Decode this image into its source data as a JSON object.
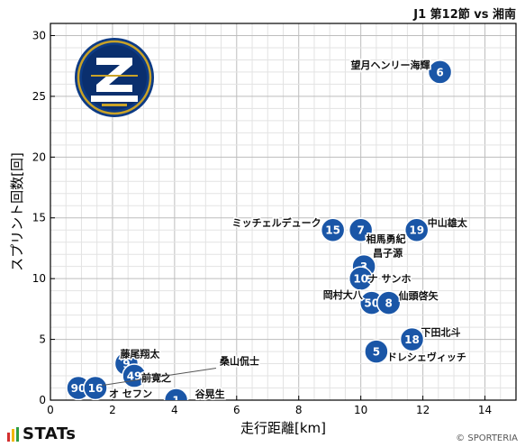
{
  "header": {
    "title": "J1 第12節 vs 湘南"
  },
  "footer": {
    "brand": "STATs",
    "copyright": "© SPORTERIA"
  },
  "colors": {
    "marker": "#1a56a7",
    "grid": "#cfcfcf",
    "axis": "#000000",
    "stats_bar_1": "#d32f2f",
    "stats_bar_2": "#f2b705",
    "stats_bar_3": "#2f9e44"
  },
  "logo": {
    "icon": "fc-machida-zelvia-crest"
  },
  "chart_data": {
    "type": "scatter",
    "xlabel": "走行距離[km]",
    "ylabel": "スプリント回数[回]",
    "xlim": [
      0,
      15
    ],
    "ylim": [
      0,
      31
    ],
    "xticks": [
      0,
      2,
      4,
      6,
      8,
      10,
      12,
      14
    ],
    "yticks": [
      0,
      5,
      10,
      15,
      20,
      25,
      30
    ],
    "grid": true,
    "points": [
      {
        "number": "6",
        "name": "望月ヘンリー海輝",
        "x": 12.55,
        "y": 27.0
      },
      {
        "number": "15",
        "name": "ミッチェルデューク",
        "x": 9.1,
        "y": 14.0
      },
      {
        "number": "7",
        "name": "相馬勇紀",
        "x": 10.0,
        "y": 14.0
      },
      {
        "number": "19",
        "name": "中山雄太",
        "x": 11.8,
        "y": 14.0
      },
      {
        "number": "3",
        "name": "昌子源",
        "x": 10.1,
        "y": 11.0
      },
      {
        "number": "10",
        "name": "ナ サンホ",
        "x": 10.0,
        "y": 10.0
      },
      {
        "number": "50",
        "name": "岡村大八",
        "x": 10.35,
        "y": 8.0
      },
      {
        "number": "8",
        "name": "仙頭啓矢",
        "x": 10.9,
        "y": 8.0
      },
      {
        "number": "18",
        "name": "下田北斗",
        "x": 11.65,
        "y": 5.0
      },
      {
        "number": "5",
        "name": "ドレシェヴィッチ",
        "x": 10.5,
        "y": 4.0
      },
      {
        "number": "9",
        "name": "藤尾翔太",
        "x": 2.45,
        "y": 3.0
      },
      {
        "number": "49",
        "name": "前寛之",
        "x": 2.7,
        "y": 2.0
      },
      {
        "number": "90",
        "name": "オ セフン",
        "x": 0.9,
        "y": 1.0
      },
      {
        "number": "16",
        "name": "桑山侃士",
        "x": 1.45,
        "y": 1.0
      },
      {
        "number": "1",
        "name": "谷晃生",
        "x": 4.05,
        "y": 0.0
      }
    ]
  }
}
